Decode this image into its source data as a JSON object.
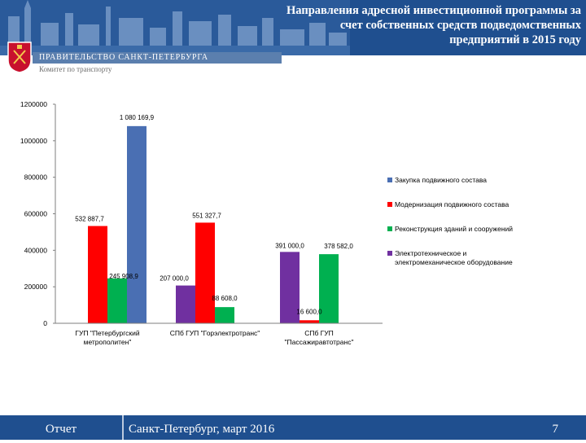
{
  "header": {
    "title_lines": [
      "Направления адресной инвестиционной программы за",
      "счет собственных средств подведомственных",
      "предприятий в 2015 году"
    ],
    "government": "ПРАВИТЕЛЬСТВО САНКТ-ПЕТЕРБУРГА",
    "committee": "Комитет по транспорту",
    "colors": {
      "band": "#1f4f8f",
      "emblem": "#c8102e"
    }
  },
  "footer": {
    "report": "Отчет",
    "place_date": "Санкт-Петербург, март 2016",
    "page": "7"
  },
  "chart_data": {
    "type": "bar",
    "categories": [
      [
        "ГУП \"Петербургский",
        "метрополитен\""
      ],
      [
        "СПб ГУП \"Горэлектротранс\""
      ],
      [
        "СПб ГУП",
        "\"Пассажиравтотранс\""
      ]
    ],
    "series": [
      {
        "name": "Закупка подвижного состава",
        "color": "#4a6fb3",
        "values": [
          1080169.9,
          0,
          0
        ],
        "labels": [
          "1 080 169,9",
          null,
          null
        ]
      },
      {
        "name": "Модернизация подвижного состава",
        "color": "#ff0000",
        "values": [
          532887.7,
          551327.7,
          16600.0
        ],
        "labels": [
          "532 887,7",
          "551 327,7",
          "16 600,0"
        ]
      },
      {
        "name": "Реконструкция зданий и сооружений",
        "color": "#00b050",
        "values": [
          245908.9,
          88608.0,
          378582.0
        ],
        "labels": [
          "245 908,9",
          "88 608,0",
          "378 582,0"
        ]
      },
      {
        "name": "Электротехническое и электромеханическое оборудование",
        "color": "#7030a0",
        "values": [
          0,
          207000.0,
          391000.0
        ],
        "labels": [
          null,
          "207 000,0",
          "391 000,0"
        ]
      }
    ],
    "yticks": [
      "0",
      "200000",
      "400000",
      "600000",
      "800000",
      "1000000",
      "1200000"
    ],
    "ylim": [
      0,
      1200000
    ],
    "grid": false,
    "legend_position": "right"
  }
}
